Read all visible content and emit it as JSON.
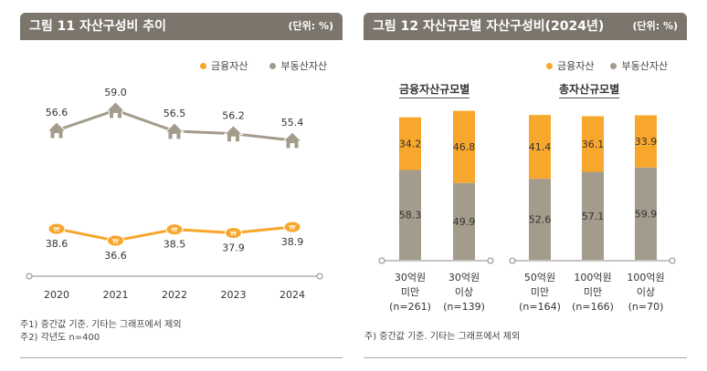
{
  "left": {
    "title": "그림 11  자산구성비 추이",
    "unit": "(단위: %)",
    "notes": [
      "주1) 중간값 기준. 기타는 그래프에서 제외",
      "주2) 각년도 n=400"
    ]
  },
  "right": {
    "title": "그림 12  자산규모별 자산구성비(2024년)",
    "unit": "(단위: %)",
    "notes": [
      "주) 중간값 기준. 기타는 그래프에서 제외"
    ],
    "group_titles": [
      "금융자산규모별",
      "총자산규모별"
    ]
  },
  "legend": [
    "금융자산",
    "부동산자산"
  ],
  "colors": {
    "financial": "#f7a72c",
    "real_estate": "#a39b8b",
    "header": "#7b756c"
  },
  "chart_data": [
    {
      "type": "line",
      "x": [
        "2020",
        "2021",
        "2022",
        "2023",
        "2024"
      ],
      "series": [
        {
          "name": "부동산자산",
          "values": [
            56.6,
            59.0,
            56.5,
            56.2,
            55.4
          ],
          "marker": "house-icon"
        },
        {
          "name": "금융자산",
          "values": [
            38.6,
            36.6,
            38.5,
            37.9,
            38.9
          ],
          "marker": "coin-icon"
        }
      ]
    },
    {
      "type": "bar",
      "stacked": true,
      "categories": [
        [
          "30억원",
          "미만",
          "(n=261)"
        ],
        [
          "30억원",
          "이상",
          "(n=139)"
        ],
        [
          "50억원",
          "미만",
          "(n=164)"
        ],
        [
          "100억원",
          "미만",
          "(n=166)"
        ],
        [
          "100억원",
          "이상",
          "(n=70)"
        ]
      ],
      "series": [
        {
          "name": "부동산자산",
          "values": [
            58.3,
            49.9,
            52.6,
            57.1,
            59.9
          ]
        },
        {
          "name": "금융자산",
          "values": [
            34.2,
            46.8,
            41.4,
            36.1,
            33.9
          ]
        }
      ]
    }
  ]
}
